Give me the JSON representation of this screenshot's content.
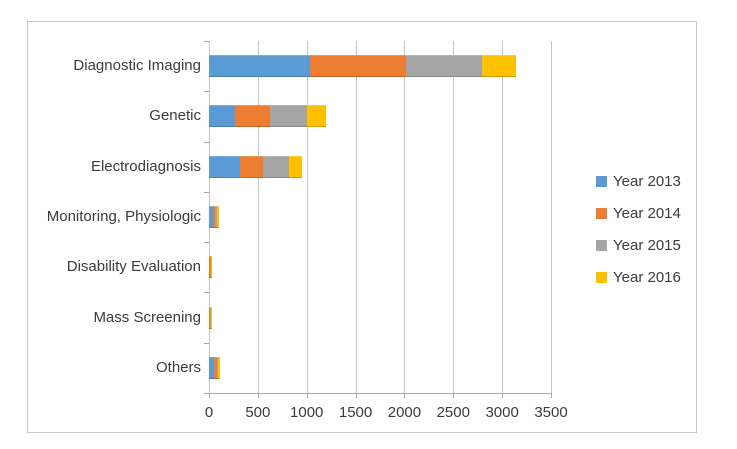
{
  "chart_data": {
    "type": "bar",
    "orientation": "horizontal",
    "stacked": true,
    "title": "",
    "xlabel": "",
    "ylabel": "",
    "categories": [
      "Diagnostic Imaging",
      "Genetic",
      "Electrodiagnosis",
      "Monitoring, Physiologic",
      "Disability Evaluation",
      "Mass Screening",
      "Others"
    ],
    "series": [
      {
        "name": "Year 2013",
        "color": "#5B9BD5",
        "values": [
          1030,
          270,
          320,
          40,
          5,
          4,
          50
        ]
      },
      {
        "name": "Year 2014",
        "color": "#ED7D31",
        "values": [
          990,
          355,
          230,
          20,
          12,
          10,
          30
        ]
      },
      {
        "name": "Year 2015",
        "color": "#A5A5A5",
        "values": [
          775,
          380,
          270,
          25,
          8,
          8,
          15
        ]
      },
      {
        "name": "Year 2016",
        "color": "#FFC000",
        "values": [
          350,
          195,
          135,
          15,
          5,
          4,
          15
        ]
      }
    ],
    "xlim": [
      0,
      3500
    ],
    "xticks": [
      0,
      500,
      1000,
      1500,
      2000,
      2500,
      3000,
      3500
    ],
    "grid": "vertical",
    "legend_position": "right",
    "background_color": "#ffffff",
    "frame_border_color": "#c9c9c9",
    "gridline_color": "#c6c6c6",
    "text_color": "#3b3b3b"
  }
}
